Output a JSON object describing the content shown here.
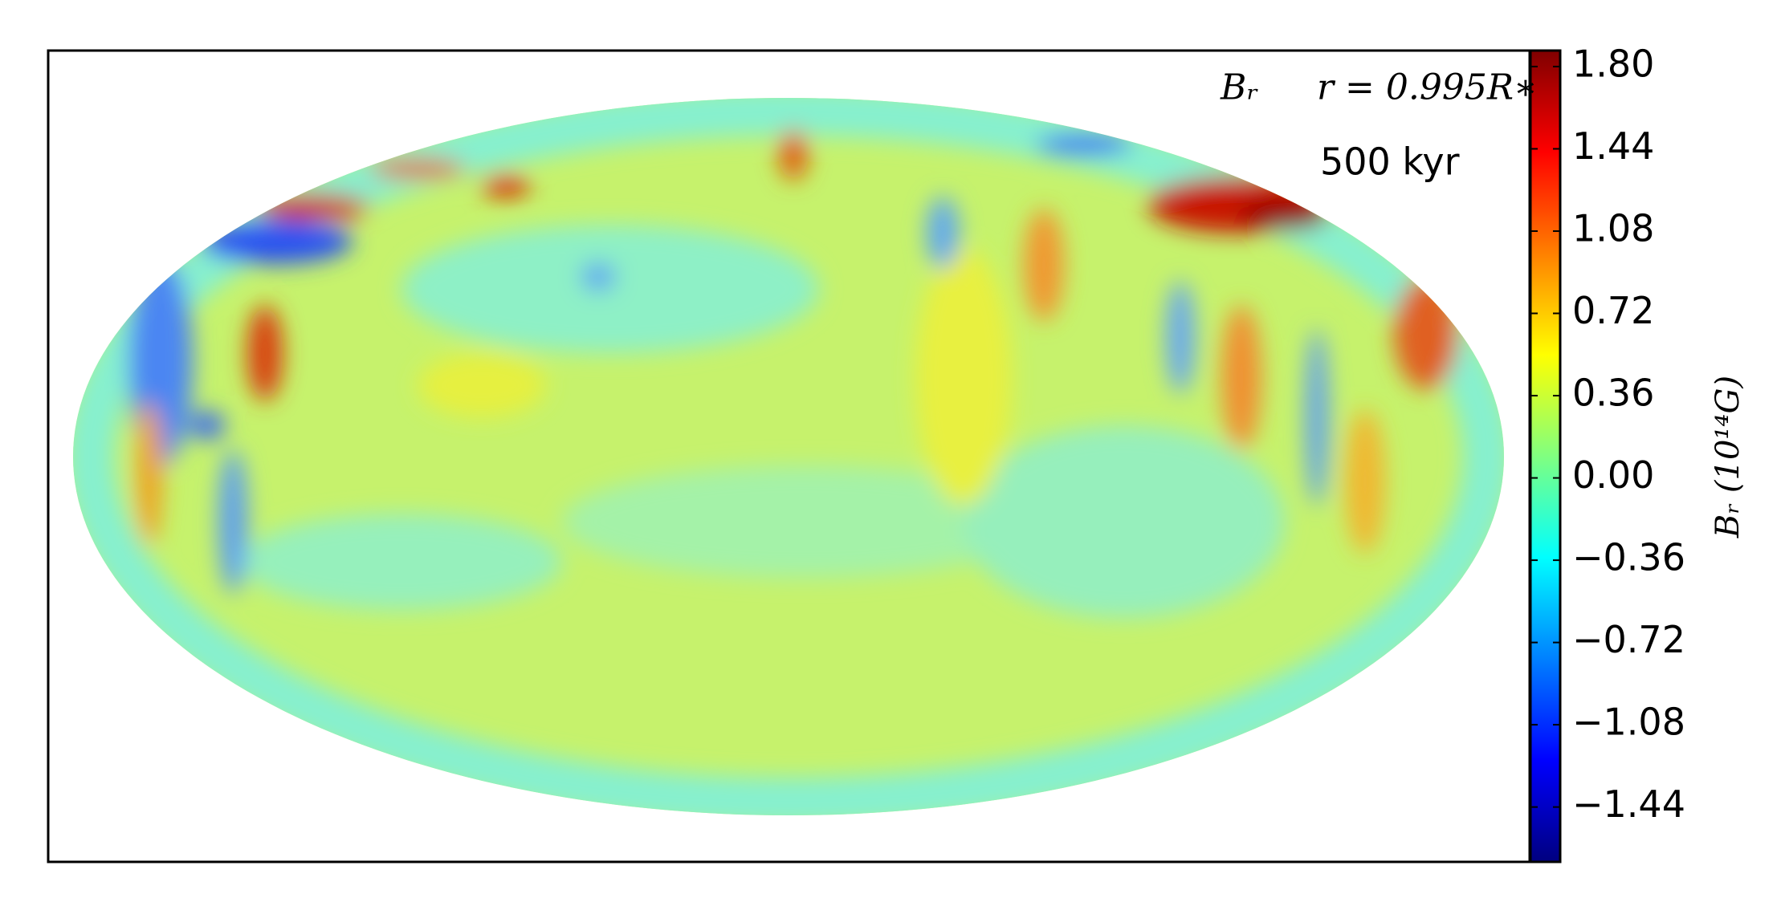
{
  "chart_data": {
    "type": "map",
    "title": "Bᵣ",
    "subtitle": "r = 0.995R∗",
    "annotations": [
      "500 kyr"
    ],
    "colorbar_label": "Bᵣ (10¹⁴G)",
    "colormap": "jet",
    "clim": [
      -1.68,
      1.87
    ],
    "cticks": [
      {
        "value": -1.44,
        "label": "−1.44"
      },
      {
        "value": -1.08,
        "label": "−1.08"
      },
      {
        "value": -0.72,
        "label": "−0.72"
      },
      {
        "value": -0.36,
        "label": "−0.36"
      },
      {
        "value": 0,
        "label": "0.00"
      },
      {
        "value": 0.36,
        "label": "0.36"
      },
      {
        "value": 0.72,
        "label": "0.72"
      },
      {
        "value": 1.08,
        "label": "1.08"
      },
      {
        "value": 1.44,
        "label": "1.44"
      },
      {
        "value": 1.8,
        "label": "1.80"
      }
    ]
  }
}
